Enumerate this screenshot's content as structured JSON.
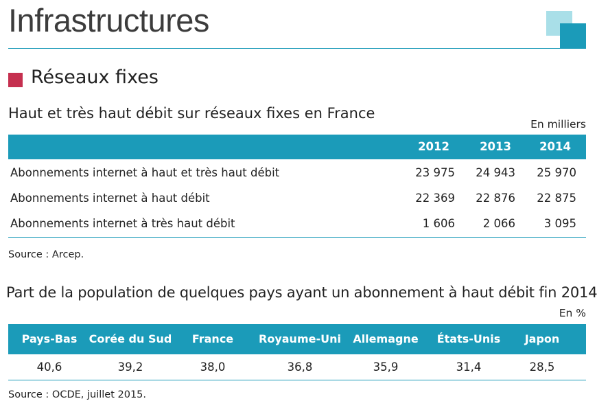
{
  "header": {
    "title": "Infrastructures",
    "accent_color": "#1b9bb9",
    "accent_light_color": "#a9dfe8"
  },
  "section": {
    "title": "Réseaux fixes",
    "marker_color": "#c5304f"
  },
  "table1": {
    "title": "Haut et très haut débit sur réseaux fixes en France",
    "unit": "En milliers",
    "columns": [
      "2012",
      "2013",
      "2014"
    ],
    "rows": [
      {
        "label": "Abonnements internet à haut et très haut débit",
        "values": [
          "23 975",
          "24 943",
          "25 970"
        ]
      },
      {
        "label": "Abonnements internet à haut débit",
        "values": [
          "22 369",
          "22 876",
          "22 875"
        ]
      },
      {
        "label": "Abonnements internet à très haut débit",
        "values": [
          "1 606",
          "2 066",
          "3 095"
        ]
      }
    ],
    "source": "Source : Arcep."
  },
  "table2": {
    "title": "Part de la population de quelques pays ayant un abonnement à haut débit fin 2014",
    "unit": "En %",
    "columns": [
      "Pays-Bas",
      "Corée du Sud",
      "France",
      "Royaume-Uni",
      "Allemagne",
      "États-Unis",
      "Japon"
    ],
    "values": [
      "40,6",
      "39,2",
      "38,0",
      "36,8",
      "35,9",
      "31,4",
      "28,5"
    ],
    "source": "Source : OCDE, juillet 2015."
  }
}
